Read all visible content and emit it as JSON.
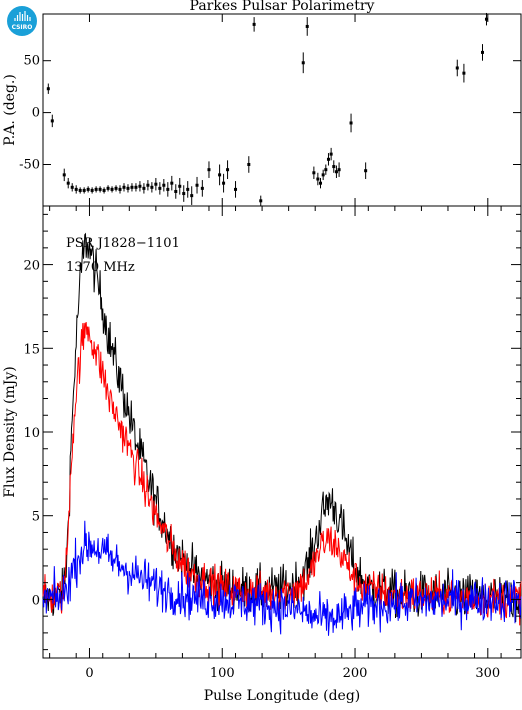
{
  "title": "Parkes Pulsar Polarimetry",
  "logo": {
    "text": "CSIRO",
    "icon": "csiro-logo-icon",
    "color": "#1aa0d8"
  },
  "chart_data": [
    {
      "type": "scatter",
      "panel": "position-angle",
      "ylabel": "P.A. (deg.)",
      "xlim": [
        -35,
        325
      ],
      "ylim": [
        -90,
        95
      ],
      "yticks": [
        -50,
        0,
        50
      ],
      "grid": false,
      "error_bars": true,
      "points": [
        {
          "x": -31,
          "y": 23,
          "err": 5
        },
        {
          "x": -28,
          "y": -8,
          "err": 6
        },
        {
          "x": -19,
          "y": -60,
          "err": 6
        },
        {
          "x": -16,
          "y": -68,
          "err": 5
        },
        {
          "x": -13,
          "y": -72,
          "err": 4
        },
        {
          "x": -10,
          "y": -74,
          "err": 4
        },
        {
          "x": -7,
          "y": -75,
          "err": 3
        },
        {
          "x": -4,
          "y": -75,
          "err": 3
        },
        {
          "x": -1,
          "y": -74,
          "err": 3
        },
        {
          "x": 2,
          "y": -75,
          "err": 3
        },
        {
          "x": 5,
          "y": -74,
          "err": 3
        },
        {
          "x": 8,
          "y": -74,
          "err": 3
        },
        {
          "x": 11,
          "y": -75,
          "err": 3
        },
        {
          "x": 14,
          "y": -73,
          "err": 3
        },
        {
          "x": 17,
          "y": -74,
          "err": 3
        },
        {
          "x": 20,
          "y": -73,
          "err": 3
        },
        {
          "x": 23,
          "y": -74,
          "err": 4
        },
        {
          "x": 26,
          "y": -72,
          "err": 4
        },
        {
          "x": 29,
          "y": -73,
          "err": 4
        },
        {
          "x": 32,
          "y": -72,
          "err": 4
        },
        {
          "x": 35,
          "y": -72,
          "err": 4
        },
        {
          "x": 38,
          "y": -71,
          "err": 5
        },
        {
          "x": 41,
          "y": -73,
          "err": 5
        },
        {
          "x": 44,
          "y": -70,
          "err": 5
        },
        {
          "x": 47,
          "y": -72,
          "err": 5
        },
        {
          "x": 50,
          "y": -69,
          "err": 6
        },
        {
          "x": 53,
          "y": -73,
          "err": 6
        },
        {
          "x": 56,
          "y": -70,
          "err": 6
        },
        {
          "x": 59,
          "y": -74,
          "err": 7
        },
        {
          "x": 62,
          "y": -68,
          "err": 7
        },
        {
          "x": 65,
          "y": -76,
          "err": 7
        },
        {
          "x": 68,
          "y": -71,
          "err": 8
        },
        {
          "x": 71,
          "y": -78,
          "err": 8
        },
        {
          "x": 74,
          "y": -74,
          "err": 8
        },
        {
          "x": 77,
          "y": -80,
          "err": 9
        },
        {
          "x": 81,
          "y": -70,
          "err": 8
        },
        {
          "x": 85,
          "y": -73,
          "err": 8
        },
        {
          "x": 90,
          "y": -55,
          "err": 8
        },
        {
          "x": 98,
          "y": -60,
          "err": 10
        },
        {
          "x": 101,
          "y": -68,
          "err": 9
        },
        {
          "x": 104,
          "y": -55,
          "err": 9
        },
        {
          "x": 110,
          "y": -74,
          "err": 8
        },
        {
          "x": 120,
          "y": -50,
          "err": 8
        },
        {
          "x": 124,
          "y": 85,
          "err": 7
        },
        {
          "x": 129,
          "y": -85,
          "err": 5
        },
        {
          "x": 161,
          "y": 48,
          "err": 10
        },
        {
          "x": 164,
          "y": 83,
          "err": 9
        },
        {
          "x": 169,
          "y": -58,
          "err": 6
        },
        {
          "x": 172,
          "y": -64,
          "err": 6
        },
        {
          "x": 174,
          "y": -68,
          "err": 5
        },
        {
          "x": 176,
          "y": -60,
          "err": 5
        },
        {
          "x": 178,
          "y": -55,
          "err": 5
        },
        {
          "x": 180,
          "y": -45,
          "err": 6
        },
        {
          "x": 182,
          "y": -40,
          "err": 6
        },
        {
          "x": 184,
          "y": -52,
          "err": 6
        },
        {
          "x": 186,
          "y": -57,
          "err": 6
        },
        {
          "x": 188,
          "y": -55,
          "err": 7
        },
        {
          "x": 197,
          "y": -10,
          "err": 9
        },
        {
          "x": 208,
          "y": -56,
          "err": 8
        },
        {
          "x": 277,
          "y": 43,
          "err": 8
        },
        {
          "x": 282,
          "y": 38,
          "err": 9
        },
        {
          "x": 296,
          "y": 58,
          "err": 8
        },
        {
          "x": 299,
          "y": 90,
          "err": 6
        }
      ]
    },
    {
      "type": "line",
      "panel": "flux-profile",
      "xlabel": "Pulse Longitude (deg)",
      "ylabel": "Flux Density (mJy)",
      "annotations": [
        "PSR J1828−1101",
        "1370 MHz"
      ],
      "xlim": [
        -35,
        325
      ],
      "ylim": [
        -3.5,
        23.5
      ],
      "xticks": [
        0,
        100,
        200,
        300
      ],
      "yticks": [
        0,
        5,
        10,
        15,
        20
      ],
      "grid": false,
      "series": [
        {
          "color": "#000000",
          "x": [
            -35,
            -20,
            -17,
            -14,
            -11,
            -8,
            -5,
            -2,
            0,
            3,
            6,
            10,
            15,
            20,
            25,
            30,
            35,
            40,
            45,
            50,
            55,
            60,
            65,
            70,
            75,
            80,
            90,
            100,
            120,
            140,
            155,
            165,
            170,
            175,
            180,
            185,
            190,
            195,
            200,
            210,
            230,
            260,
            300,
            325
          ],
          "y": [
            0,
            0.3,
            2.5,
            9,
            14,
            18,
            20.5,
            21.5,
            21,
            20,
            19,
            17.5,
            15.5,
            14,
            12.5,
            11,
            9.5,
            8.3,
            7,
            5.8,
            4.8,
            3.8,
            3,
            2.4,
            1.9,
            1.5,
            1.1,
            0.8,
            0.5,
            0.5,
            0.9,
            2,
            3.5,
            5,
            6,
            5.5,
            4.3,
            3,
            1.8,
            0.7,
            0.3,
            0.2,
            0.1,
            0
          ]
        },
        {
          "color": "#ff0000",
          "x": [
            -35,
            -20,
            -17,
            -14,
            -11,
            -8,
            -5,
            -2,
            0,
            3,
            6,
            10,
            15,
            20,
            25,
            30,
            35,
            40,
            45,
            50,
            55,
            60,
            65,
            70,
            75,
            80,
            90,
            100,
            120,
            140,
            155,
            165,
            170,
            175,
            180,
            185,
            190,
            195,
            200,
            210,
            230,
            260,
            300,
            325
          ],
          "y": [
            0,
            0.3,
            2.5,
            8,
            11.5,
            14,
            15.5,
            16.3,
            16,
            15.2,
            14.5,
            13.5,
            12,
            11,
            10,
            9,
            8,
            7,
            6,
            5,
            4.2,
            3.4,
            2.7,
            2.2,
            1.7,
            1.4,
            1,
            0.7,
            0.4,
            0.4,
            0.6,
            1.2,
            2.3,
            3.2,
            3.6,
            3.3,
            2.6,
            1.9,
            1.2,
            0.6,
            0.3,
            0.2,
            0.1,
            0
          ]
        },
        {
          "color": "#0000ff",
          "x": [
            -35,
            -20,
            -15,
            -10,
            -5,
            0,
            5,
            10,
            15,
            20,
            30,
            40,
            50,
            60,
            70,
            80,
            100,
            120,
            140,
            160,
            170,
            180,
            190,
            200,
            220,
            260,
            300,
            325
          ],
          "y": [
            0,
            0.1,
            1.2,
            2.3,
            3,
            3.3,
            3.1,
            2.8,
            2.5,
            2.2,
            1.7,
            1.2,
            0.8,
            0.5,
            0.3,
            0.1,
            0,
            -0.2,
            -0.4,
            -0.7,
            -1.1,
            -1.2,
            -1,
            -0.6,
            -0.3,
            -0.1,
            0,
            0
          ]
        }
      ]
    }
  ]
}
